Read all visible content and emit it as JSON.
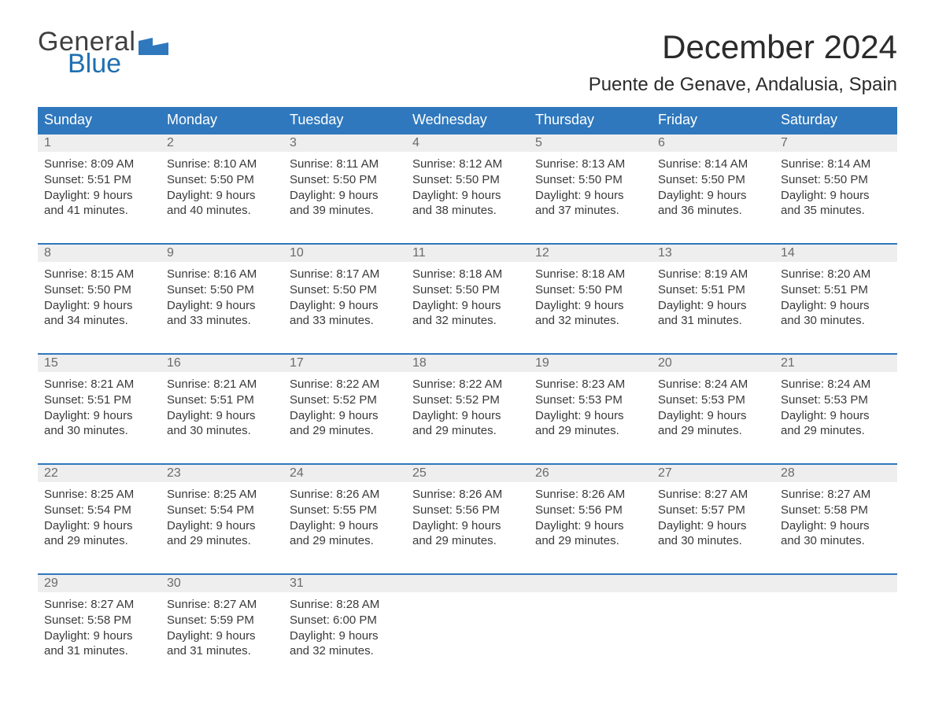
{
  "brand": {
    "word1": "General",
    "word2": "Blue",
    "icon_color": "#2f78bd"
  },
  "title": "December 2024",
  "location": "Puente de Genave, Andalusia, Spain",
  "colors": {
    "header_bg": "#2f78bd",
    "header_text": "#ffffff",
    "week_border": "#2f78bd",
    "daynum_bg": "#eeeeee",
    "daynum_text": "#6b6b6b",
    "body_text": "#3a3a3a",
    "page_bg": "#ffffff"
  },
  "day_names": [
    "Sunday",
    "Monday",
    "Tuesday",
    "Wednesday",
    "Thursday",
    "Friday",
    "Saturday"
  ],
  "weeks": [
    [
      {
        "n": "1",
        "sunrise": "Sunrise: 8:09 AM",
        "sunset": "Sunset: 5:51 PM",
        "d1": "Daylight: 9 hours",
        "d2": "and 41 minutes."
      },
      {
        "n": "2",
        "sunrise": "Sunrise: 8:10 AM",
        "sunset": "Sunset: 5:50 PM",
        "d1": "Daylight: 9 hours",
        "d2": "and 40 minutes."
      },
      {
        "n": "3",
        "sunrise": "Sunrise: 8:11 AM",
        "sunset": "Sunset: 5:50 PM",
        "d1": "Daylight: 9 hours",
        "d2": "and 39 minutes."
      },
      {
        "n": "4",
        "sunrise": "Sunrise: 8:12 AM",
        "sunset": "Sunset: 5:50 PM",
        "d1": "Daylight: 9 hours",
        "d2": "and 38 minutes."
      },
      {
        "n": "5",
        "sunrise": "Sunrise: 8:13 AM",
        "sunset": "Sunset: 5:50 PM",
        "d1": "Daylight: 9 hours",
        "d2": "and 37 minutes."
      },
      {
        "n": "6",
        "sunrise": "Sunrise: 8:14 AM",
        "sunset": "Sunset: 5:50 PM",
        "d1": "Daylight: 9 hours",
        "d2": "and 36 minutes."
      },
      {
        "n": "7",
        "sunrise": "Sunrise: 8:14 AM",
        "sunset": "Sunset: 5:50 PM",
        "d1": "Daylight: 9 hours",
        "d2": "and 35 minutes."
      }
    ],
    [
      {
        "n": "8",
        "sunrise": "Sunrise: 8:15 AM",
        "sunset": "Sunset: 5:50 PM",
        "d1": "Daylight: 9 hours",
        "d2": "and 34 minutes."
      },
      {
        "n": "9",
        "sunrise": "Sunrise: 8:16 AM",
        "sunset": "Sunset: 5:50 PM",
        "d1": "Daylight: 9 hours",
        "d2": "and 33 minutes."
      },
      {
        "n": "10",
        "sunrise": "Sunrise: 8:17 AM",
        "sunset": "Sunset: 5:50 PM",
        "d1": "Daylight: 9 hours",
        "d2": "and 33 minutes."
      },
      {
        "n": "11",
        "sunrise": "Sunrise: 8:18 AM",
        "sunset": "Sunset: 5:50 PM",
        "d1": "Daylight: 9 hours",
        "d2": "and 32 minutes."
      },
      {
        "n": "12",
        "sunrise": "Sunrise: 8:18 AM",
        "sunset": "Sunset: 5:50 PM",
        "d1": "Daylight: 9 hours",
        "d2": "and 32 minutes."
      },
      {
        "n": "13",
        "sunrise": "Sunrise: 8:19 AM",
        "sunset": "Sunset: 5:51 PM",
        "d1": "Daylight: 9 hours",
        "d2": "and 31 minutes."
      },
      {
        "n": "14",
        "sunrise": "Sunrise: 8:20 AM",
        "sunset": "Sunset: 5:51 PM",
        "d1": "Daylight: 9 hours",
        "d2": "and 30 minutes."
      }
    ],
    [
      {
        "n": "15",
        "sunrise": "Sunrise: 8:21 AM",
        "sunset": "Sunset: 5:51 PM",
        "d1": "Daylight: 9 hours",
        "d2": "and 30 minutes."
      },
      {
        "n": "16",
        "sunrise": "Sunrise: 8:21 AM",
        "sunset": "Sunset: 5:51 PM",
        "d1": "Daylight: 9 hours",
        "d2": "and 30 minutes."
      },
      {
        "n": "17",
        "sunrise": "Sunrise: 8:22 AM",
        "sunset": "Sunset: 5:52 PM",
        "d1": "Daylight: 9 hours",
        "d2": "and 29 minutes."
      },
      {
        "n": "18",
        "sunrise": "Sunrise: 8:22 AM",
        "sunset": "Sunset: 5:52 PM",
        "d1": "Daylight: 9 hours",
        "d2": "and 29 minutes."
      },
      {
        "n": "19",
        "sunrise": "Sunrise: 8:23 AM",
        "sunset": "Sunset: 5:53 PM",
        "d1": "Daylight: 9 hours",
        "d2": "and 29 minutes."
      },
      {
        "n": "20",
        "sunrise": "Sunrise: 8:24 AM",
        "sunset": "Sunset: 5:53 PM",
        "d1": "Daylight: 9 hours",
        "d2": "and 29 minutes."
      },
      {
        "n": "21",
        "sunrise": "Sunrise: 8:24 AM",
        "sunset": "Sunset: 5:53 PM",
        "d1": "Daylight: 9 hours",
        "d2": "and 29 minutes."
      }
    ],
    [
      {
        "n": "22",
        "sunrise": "Sunrise: 8:25 AM",
        "sunset": "Sunset: 5:54 PM",
        "d1": "Daylight: 9 hours",
        "d2": "and 29 minutes."
      },
      {
        "n": "23",
        "sunrise": "Sunrise: 8:25 AM",
        "sunset": "Sunset: 5:54 PM",
        "d1": "Daylight: 9 hours",
        "d2": "and 29 minutes."
      },
      {
        "n": "24",
        "sunrise": "Sunrise: 8:26 AM",
        "sunset": "Sunset: 5:55 PM",
        "d1": "Daylight: 9 hours",
        "d2": "and 29 minutes."
      },
      {
        "n": "25",
        "sunrise": "Sunrise: 8:26 AM",
        "sunset": "Sunset: 5:56 PM",
        "d1": "Daylight: 9 hours",
        "d2": "and 29 minutes."
      },
      {
        "n": "26",
        "sunrise": "Sunrise: 8:26 AM",
        "sunset": "Sunset: 5:56 PM",
        "d1": "Daylight: 9 hours",
        "d2": "and 29 minutes."
      },
      {
        "n": "27",
        "sunrise": "Sunrise: 8:27 AM",
        "sunset": "Sunset: 5:57 PM",
        "d1": "Daylight: 9 hours",
        "d2": "and 30 minutes."
      },
      {
        "n": "28",
        "sunrise": "Sunrise: 8:27 AM",
        "sunset": "Sunset: 5:58 PM",
        "d1": "Daylight: 9 hours",
        "d2": "and 30 minutes."
      }
    ],
    [
      {
        "n": "29",
        "sunrise": "Sunrise: 8:27 AM",
        "sunset": "Sunset: 5:58 PM",
        "d1": "Daylight: 9 hours",
        "d2": "and 31 minutes."
      },
      {
        "n": "30",
        "sunrise": "Sunrise: 8:27 AM",
        "sunset": "Sunset: 5:59 PM",
        "d1": "Daylight: 9 hours",
        "d2": "and 31 minutes."
      },
      {
        "n": "31",
        "sunrise": "Sunrise: 8:28 AM",
        "sunset": "Sunset: 6:00 PM",
        "d1": "Daylight: 9 hours",
        "d2": "and 32 minutes."
      },
      null,
      null,
      null,
      null
    ]
  ]
}
